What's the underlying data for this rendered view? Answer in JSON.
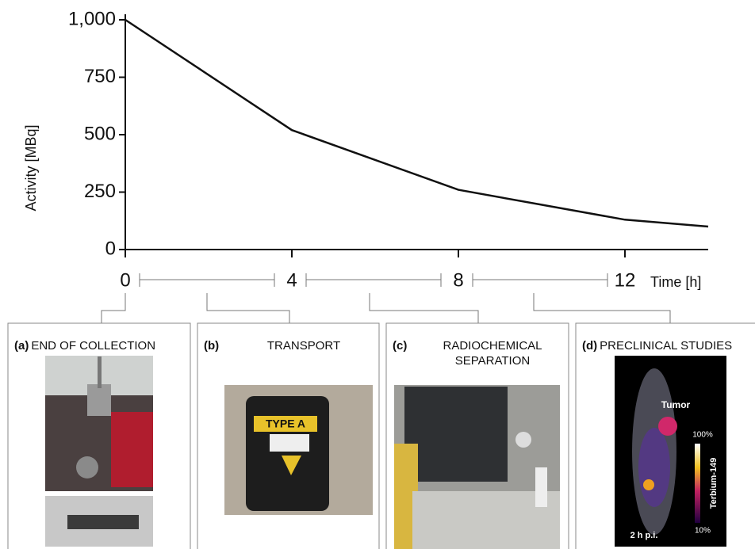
{
  "chart_data": {
    "type": "line",
    "x_label": "Time [h]",
    "y_label": "Activity [MBq]",
    "x": [
      0,
      4,
      8,
      12,
      14
    ],
    "series": [
      {
        "color": "#111111",
        "values": [
          1000,
          520,
          260,
          130,
          100
        ]
      }
    ],
    "xlim": [
      0,
      14
    ],
    "ylim": [
      0,
      1000
    ],
    "xticks": [
      0,
      4,
      8,
      12
    ],
    "yticks": [
      0,
      250,
      500,
      750,
      {
        "value": 1000,
        "label": "1,000"
      }
    ]
  },
  "panels": [
    {
      "letter": "(a)",
      "title": [
        "END OF COLLECTION"
      ]
    },
    {
      "letter": "(b)",
      "title": [
        "TRANSPORT"
      ]
    },
    {
      "letter": "(c)",
      "title": [
        "RADIOCHEMICAL",
        "SEPARATION"
      ]
    },
    {
      "letter": "(d)",
      "title": [
        "PRECLINICAL STUDIES"
      ]
    }
  ],
  "photo_texts": {
    "container": "TYPE A",
    "tumor": "Tumor",
    "scale_top": "100%",
    "scale_bottom": "10%",
    "isotope": "Terbium-149",
    "time": "2 h p.i."
  }
}
